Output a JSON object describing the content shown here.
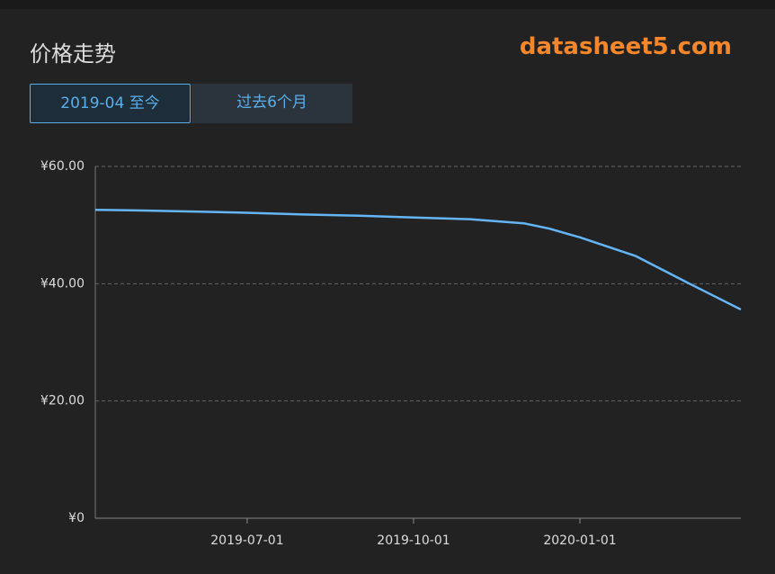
{
  "header": {
    "title": "价格走势",
    "brand": "datasheet5.com"
  },
  "buttons": [
    {
      "label": "2019-04 至今",
      "active": true
    },
    {
      "label": "过去6个月",
      "active": false
    }
  ],
  "chart_data": {
    "type": "line",
    "x": [
      "2019-04-08",
      "2019-05-01",
      "2019-06-01",
      "2019-07-01",
      "2019-08-01",
      "2019-09-01",
      "2019-10-01",
      "2019-11-01",
      "2019-12-01",
      "2019-12-15",
      "2020-01-01",
      "2020-02-01",
      "2020-03-01",
      "2020-03-30"
    ],
    "series": [
      {
        "color": "#64b5f6",
        "values": [
          52.6,
          52.5,
          52.3,
          52.1,
          51.8,
          51.6,
          51.3,
          51.0,
          50.3,
          49.4,
          47.9,
          44.7,
          40.1,
          35.6
        ]
      }
    ],
    "xlim": [
      "2019-04-08",
      "2020-03-30"
    ],
    "xticks": [
      "2019-07-01",
      "2019-10-01",
      "2020-01-01"
    ],
    "ylim": [
      0,
      60
    ],
    "yticks": [
      {
        "value": 0,
        "label": "¥0"
      },
      {
        "value": 20,
        "label": "¥20.00"
      },
      {
        "value": 40,
        "label": "¥40.00"
      },
      {
        "value": 60,
        "label": "¥60.00"
      }
    ],
    "grid": true
  }
}
